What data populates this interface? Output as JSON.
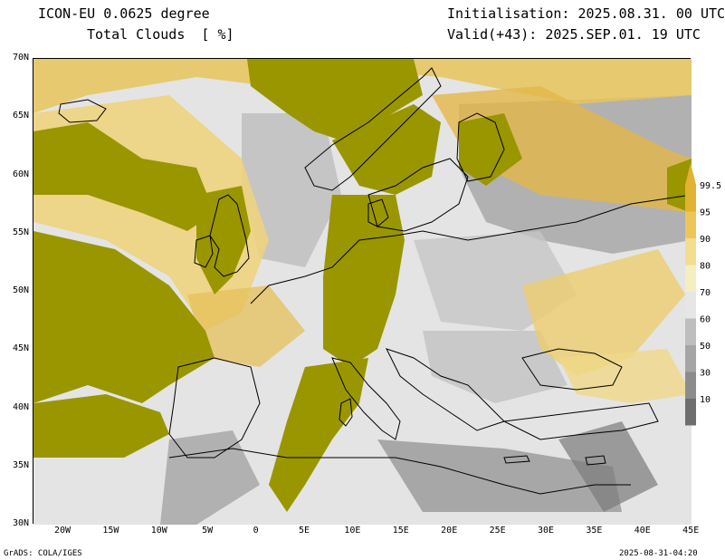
{
  "header": {
    "model": "ICON-EU 0.0625 degree",
    "field": "Total Clouds  [ %]",
    "initialisation": "Initialisation: 2025.08.31. 00 UTC",
    "valid": "Valid(+43): 2025.SEP.01. 19 UTC"
  },
  "map": {
    "lat_labels": [
      "70N",
      "65N",
      "60N",
      "55N",
      "50N",
      "45N",
      "40N",
      "35N",
      "30N"
    ],
    "lon_labels": [
      "20W",
      "15W",
      "10W",
      "5W",
      "0",
      "5E",
      "10E",
      "15E",
      "20E",
      "25E",
      "30E",
      "35E",
      "40E",
      "45E"
    ],
    "colors": {
      "overcast": "#9a9600",
      "clear": "#e6e6e6",
      "ocean_text": "#000000"
    }
  },
  "legend": {
    "labels": [
      "99.5",
      "95",
      "90",
      "80",
      "70",
      "60",
      "50",
      "30",
      "10"
    ],
    "colors": [
      "#e2b232",
      "#edc659",
      "#f4dc90",
      "#f4eec0",
      "#e6e6e6",
      "#bebebe",
      "#a5a5a5",
      "#8c8c8c",
      "#6e6e6e"
    ]
  },
  "footer": {
    "grads": "GrADS: COLA/IGES",
    "timestamp": "2025-08-31-04:20"
  }
}
